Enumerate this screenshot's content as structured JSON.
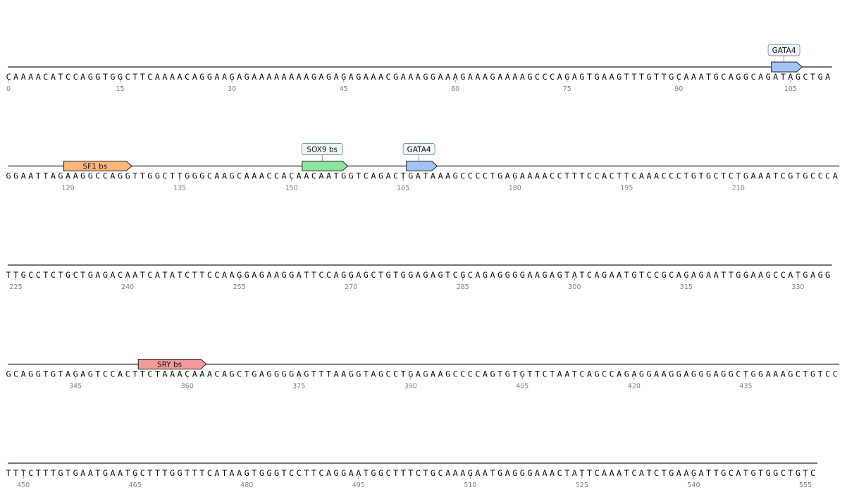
{
  "sequence_map": {
    "rows": [
      {
        "start": 0,
        "sequence": "CAAAACATCCAGGTGGCTTCAAAACAGGAAGAGAAAAAAAAGAGAGAGAAACGAAAGGAAAGAAAGAAAAGCCCAGAGTGAAGTTTGTTGCAAATGCAGGCAGATAGCTGA",
        "ticks": [
          "0",
          "15",
          "30",
          "45",
          "60",
          "75",
          "90",
          "105"
        ]
      },
      {
        "start": 112,
        "sequence": "GGAATTAGAAGGCCAGGTTGGCTTGGGCAAGCAAACCACAACAATGGTCAGACTGATAAAGCCCCTGAGAAAACCTTTCCACTTCAAACCCTGTGCTCTGAAATCGTGCCCA",
        "ticks": [
          "120",
          "135",
          "150",
          "165",
          "180",
          "195",
          "210"
        ]
      },
      {
        "start": 224,
        "sequence": "TTGCCTCTGCTGAGACAATCATATCTTCCAAGGAGAAGGATTCCAGGAGCTGTGGAGAGTCGCAGAGGGGAAGAGTATCAGAATGTCCGCAGAGAATTGGAAGCCATGAGG",
        "ticks": [
          "225",
          "240",
          "255",
          "270",
          "285",
          "300",
          "315",
          "330"
        ]
      },
      {
        "start": 336,
        "sequence": "GCAGGTGTAGAGTCCACTTCTAAACAAACAGCTGAGGGGAGTTTAAGGTAGCCTGAGAAGCCCCAGTGTGTTCTAATCAGCCAGAGGAAGGAGGGAGGCTGGAAAGCTGTCC",
        "ticks": [
          "345",
          "360",
          "375",
          "390",
          "405",
          "420",
          "435"
        ]
      },
      {
        "start": 448,
        "sequence": "TTTCTTTGTGAATGAATGCTTTGGTTTCATAAGTGGGTCCTTCAGGAATGGCTTTCTGCAAAGAATGAGGGAAACTATTCAAATCATCTGAAGATTGCATGTGGCTGTC",
        "ticks": [
          "450",
          "465",
          "480",
          "495",
          "510",
          "525",
          "540",
          "555"
        ]
      }
    ],
    "features": [
      {
        "label": "GATA4",
        "start": 103,
        "end": 106,
        "color": "#a1c4f5",
        "label_style": "callout"
      },
      {
        "label": "SF1 bs",
        "start": 120,
        "end": 128,
        "color": "#fcb77e",
        "label_style": "inline"
      },
      {
        "label": "SOX9 bs",
        "start": 152,
        "end": 157,
        "color": "#8ee39e",
        "label_style": "callout"
      },
      {
        "label": "GATA4",
        "start": 166,
        "end": 169,
        "color": "#a1c4f5",
        "label_style": "callout"
      },
      {
        "label": "SRY bs",
        "start": 354,
        "end": 362,
        "color": "#f49a9a",
        "label_style": "inline"
      }
    ]
  }
}
